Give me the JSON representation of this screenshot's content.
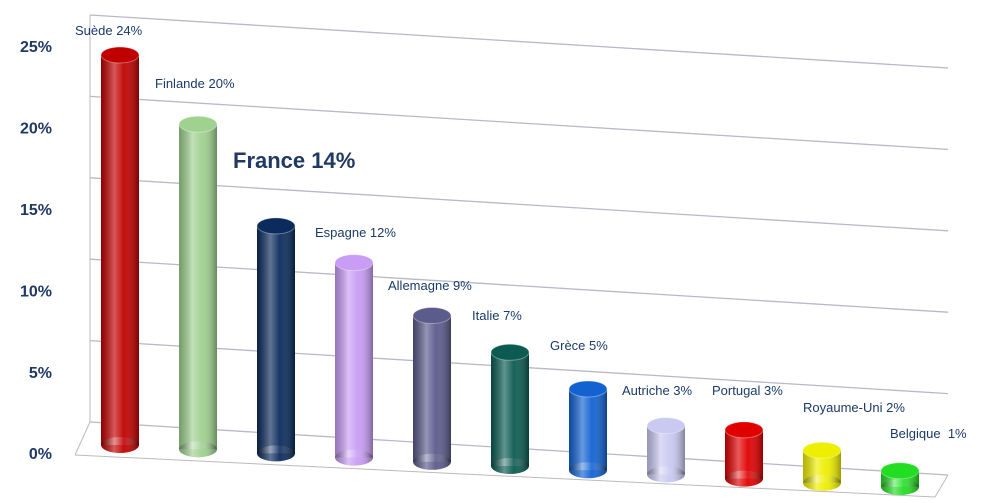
{
  "chart_data": {
    "type": "bar",
    "values": [
      24,
      20,
      14,
      12,
      9,
      7,
      5,
      3,
      3,
      2,
      1
    ],
    "value_labels": [
      "Suède 24%",
      "Finlande 20%",
      "France 14%",
      "Espagne 12%",
      "Allemagne 9%",
      "Italie 7%",
      "Grèce 5%",
      "Autriche 3%",
      "Portugal 3%",
      "Royaume-Uni 2%",
      "Belgique  1%"
    ],
    "colors": [
      "#c00000",
      "#9fd18f",
      "#0b2b5c",
      "#c99cf5",
      "#5b5b8c",
      "#0b5b52",
      "#1262d2",
      "#c9c9f2",
      "#e00000",
      "#eeee00",
      "#22dd22"
    ],
    "ylim": [
      0,
      25
    ],
    "yticks": [
      {
        "value": 0,
        "label": "0%"
      },
      {
        "value": 5,
        "label": "5%"
      },
      {
        "value": 10,
        "label": "10%"
      },
      {
        "value": 15,
        "label": "15%"
      },
      {
        "value": 20,
        "label": "20%"
      },
      {
        "value": 25,
        "label": "25%"
      }
    ],
    "grid": true
  }
}
